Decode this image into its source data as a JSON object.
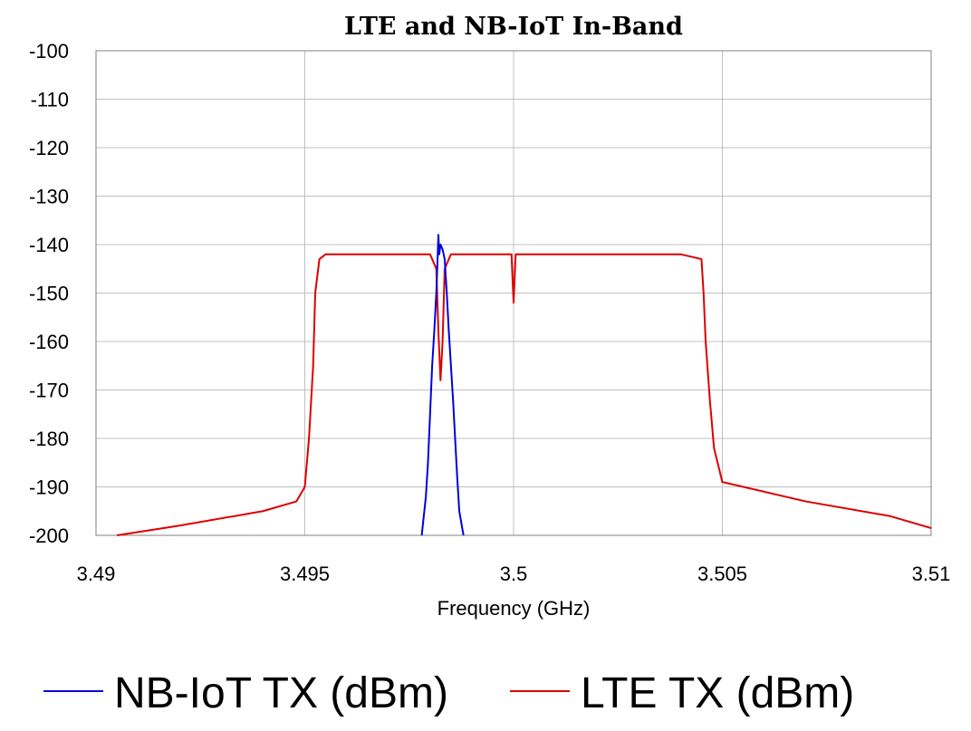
{
  "chart_data": {
    "type": "line",
    "title": "LTE and NB-IoT In-Band",
    "xlabel": "Frequency (GHz)",
    "ylabel": "",
    "xlim": [
      3.49,
      3.51
    ],
    "ylim": [
      -200,
      -100
    ],
    "x_ticks": [
      "3.49",
      "3.495",
      "3.5",
      "3.505",
      "3.51"
    ],
    "y_ticks": [
      "-100",
      "-110",
      "-120",
      "-130",
      "-140",
      "-150",
      "-160",
      "-170",
      "-180",
      "-190",
      "-200"
    ],
    "grid": true,
    "legend_position": "bottom",
    "series": [
      {
        "name": "NB-IoT TX (dBm)",
        "color": "#0000dd",
        "x": [
          3.4978,
          3.4979,
          3.49795,
          3.498,
          3.49805,
          3.4981,
          3.49815,
          3.4982,
          3.49822,
          3.49825,
          3.4983,
          3.49835,
          3.4984,
          3.49845,
          3.4985,
          3.49855,
          3.4986,
          3.49865,
          3.4987,
          3.4988
        ],
        "y": [
          -200,
          -192,
          -185,
          -175,
          -165,
          -158,
          -150,
          -138,
          -142,
          -140,
          -141,
          -143,
          -150,
          -158,
          -165,
          -172,
          -180,
          -188,
          -195,
          -200
        ]
      },
      {
        "name": "LTE TX (dBm)",
        "color": "#dd0000",
        "x": [
          3.4905,
          3.492,
          3.494,
          3.4948,
          3.495,
          3.4951,
          3.4952,
          3.49525,
          3.49535,
          3.4955,
          3.496,
          3.497,
          3.498,
          3.49815,
          3.4982,
          3.49825,
          3.4983,
          3.49835,
          3.4985,
          3.499,
          3.49995,
          3.5,
          3.50005,
          3.501,
          3.502,
          3.503,
          3.504,
          3.5045,
          3.50455,
          3.5046,
          3.5047,
          3.5048,
          3.505,
          3.507,
          3.509,
          3.51
        ],
        "y": [
          -200,
          -198,
          -195,
          -193,
          -190,
          -180,
          -165,
          -150,
          -143,
          -142,
          -142,
          -142,
          -142,
          -145,
          -158,
          -168,
          -160,
          -145,
          -142,
          -142,
          -142,
          -152,
          -142,
          -142,
          -142,
          -142,
          -142,
          -143,
          -150,
          -160,
          -172,
          -182,
          -189,
          -193,
          -196,
          -198.5
        ]
      }
    ]
  }
}
